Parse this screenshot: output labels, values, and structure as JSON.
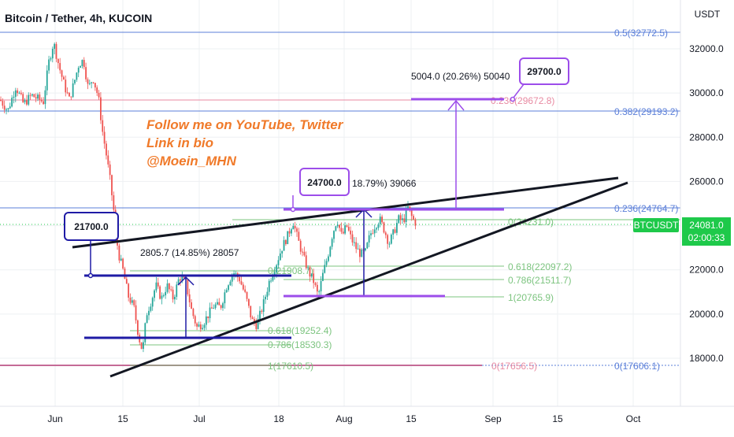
{
  "header": {
    "title": "Bitcoin / Tether, 4h, KUCOIN"
  },
  "price_axis": {
    "unit_label": "USDT"
  },
  "current_price": {
    "value": "24081.0",
    "countdown": "02:00:33",
    "symbol": "BTCUSDT"
  },
  "promo": {
    "line1": "Follow me on YouTube, Twitter",
    "line2": "Link in bio",
    "line3": "@Moein_MHN"
  },
  "measurements": {
    "left": "2805.7 (14.85%) 28057",
    "middle": "18.79%) 39066",
    "right": "5004.0 (20.26%) 50040"
  },
  "callouts": {
    "a": "21700.0",
    "b": "24700.0",
    "c": "29700.0"
  },
  "fib_levels": {
    "blue_top": "0.5(32772.5)",
    "blue_382": "0.382(29193.2)",
    "blue_236": "0.236(24764.7)",
    "blue_0": "0(17606.1)",
    "red_236": "0.236(29672.8)",
    "red_0": "0(17656.5)",
    "green_0": "0(24231.0)",
    "green_618": "0.618(22097.2)",
    "green_786": "0.786(21511.7)",
    "green_1": "1(20765.9)",
    "g2_0": "0(21908.7)",
    "g2_618": "0.618(19252.4)",
    "g2_786": "0.786(18530.3)",
    "g2_1": "1(17610.5)"
  },
  "colors": {
    "up": "#26a69a",
    "down": "#ef5350",
    "fib_blue": "#5b7fd8",
    "fib_red": "#e88aa2",
    "fib_green": "#7cc47f",
    "navy": "#1f1ba5",
    "purple": "#9c4dea",
    "orange": "#f07a2a",
    "current_price": "#1ec94a"
  },
  "chart_data": {
    "type": "candlestick",
    "title": "Bitcoin / Tether, 4h, KUCOIN",
    "y_axis": {
      "label": "USDT",
      "ticks": [
        18000,
        20000,
        22000,
        24000,
        26000,
        28000,
        30000,
        32000
      ],
      "ylim": [
        16100,
        34400
      ]
    },
    "x_axis": {
      "ticks": [
        "Jun",
        "15",
        "Jul",
        "18",
        "Aug",
        "15",
        "Sep",
        "15",
        "Oct"
      ]
    },
    "price_path": [
      [
        0,
        29700
      ],
      [
        10,
        29200
      ],
      [
        20,
        30300
      ],
      [
        30,
        29500
      ],
      [
        40,
        29900
      ],
      [
        55,
        29600
      ],
      [
        62,
        31400
      ],
      [
        68,
        32300
      ],
      [
        75,
        31200
      ],
      [
        82,
        30300
      ],
      [
        88,
        29700
      ],
      [
        95,
        30600
      ],
      [
        100,
        31300
      ],
      [
        106,
        31500
      ],
      [
        112,
        30200
      ],
      [
        118,
        30700
      ],
      [
        125,
        29800
      ],
      [
        130,
        28300
      ],
      [
        135,
        27200
      ],
      [
        140,
        26000
      ],
      [
        145,
        24500
      ],
      [
        150,
        22800
      ],
      [
        156,
        22000
      ],
      [
        163,
        20800
      ],
      [
        170,
        20300
      ],
      [
        176,
        19000
      ],
      [
        181,
        18300
      ],
      [
        186,
        20000
      ],
      [
        192,
        20600
      ],
      [
        198,
        21300
      ],
      [
        205,
        20700
      ],
      [
        212,
        21300
      ],
      [
        220,
        20700
      ],
      [
        228,
        21700
      ],
      [
        236,
        21400
      ],
      [
        243,
        20200
      ],
      [
        250,
        19400
      ],
      [
        258,
        19600
      ],
      [
        265,
        20000
      ],
      [
        272,
        20400
      ],
      [
        280,
        20300
      ],
      [
        288,
        21300
      ],
      [
        296,
        21900
      ],
      [
        304,
        21600
      ],
      [
        312,
        20800
      ],
      [
        320,
        19700
      ],
      [
        326,
        19500
      ],
      [
        334,
        20400
      ],
      [
        342,
        21500
      ],
      [
        350,
        22200
      ],
      [
        358,
        23000
      ],
      [
        366,
        23600
      ],
      [
        372,
        24200
      ],
      [
        378,
        23400
      ],
      [
        385,
        22600
      ],
      [
        392,
        21900
      ],
      [
        398,
        21500
      ],
      [
        404,
        20800
      ],
      [
        410,
        21800
      ],
      [
        416,
        22600
      ],
      [
        422,
        23600
      ],
      [
        428,
        24300
      ],
      [
        434,
        23500
      ],
      [
        440,
        24000
      ],
      [
        446,
        23400
      ],
      [
        452,
        23000
      ],
      [
        458,
        22700
      ],
      [
        464,
        22800
      ],
      [
        470,
        23600
      ],
      [
        476,
        24000
      ],
      [
        482,
        24300
      ],
      [
        488,
        23800
      ],
      [
        494,
        23200
      ],
      [
        500,
        23700
      ],
      [
        506,
        24300
      ],
      [
        512,
        24200
      ],
      [
        518,
        24800
      ],
      [
        524,
        24300
      ],
      [
        529,
        24081
      ]
    ],
    "annotations": [
      "Follow me on YouTube, Twitter",
      "Link in bio",
      "@Moein_MHN",
      "2805.7 (14.85%) 28057",
      "18.79%) 39066",
      "5004.0 (20.26%) 50040",
      "21700.0",
      "24700.0",
      "29700.0"
    ]
  }
}
